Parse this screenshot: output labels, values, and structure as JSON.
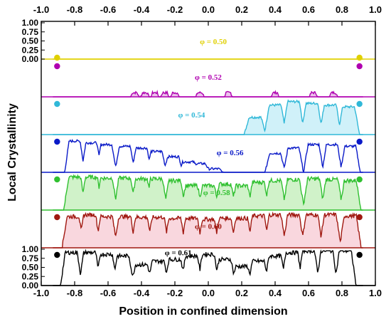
{
  "chart_data": {
    "type": "line",
    "xlabel": "Position in confined dimension",
    "ylabel": "Local Crystallinity",
    "xlim": [
      -1.0,
      1.0
    ],
    "ylim": [
      0.0,
      1.0
    ],
    "x_ticks": [
      "-1.0",
      "-0.8",
      "-0.6",
      "-0.4",
      "-0.2",
      "0.0",
      "0.2",
      "0.4",
      "0.6",
      "0.8",
      "1.0"
    ],
    "top_x_ticks": [
      "-1.0",
      "-0.8",
      "-0.6",
      "-0.4",
      "-0.2",
      "0.0",
      "0.2",
      "0.4",
      "0.6",
      "0.8",
      "1.0"
    ],
    "y_ticks_top": [
      "1.00",
      "0.75",
      "0.50",
      "0.25",
      "0.00"
    ],
    "y_ticks_bottom": [
      "1.00",
      "0.75",
      "0.50",
      "0.25",
      "0.00"
    ],
    "panels": [
      {
        "label": "φ = 0.50",
        "color": "#e0d000",
        "fill": null,
        "kind": "flat",
        "peaks": [],
        "width": 0.05
      },
      {
        "label": "φ = 0.52",
        "color": "#b000b0",
        "fill": "#e8b8e8",
        "kind": "small",
        "peaks": [
          -0.44,
          -0.38,
          -0.32,
          -0.26,
          -0.2,
          -0.05,
          0.12,
          0.4,
          0.63,
          0.75
        ],
        "width": 0.025
      },
      {
        "label": "φ = 0.54",
        "color": "#30b8d8",
        "fill": "#c8eef8",
        "kind": "partial",
        "peaks": [
          0.28,
          0.4,
          0.51,
          0.62,
          0.73,
          0.84
        ],
        "heights": [
          0.5,
          0.85,
          0.95,
          0.9,
          0.85,
          0.8
        ],
        "width": 0.065
      },
      {
        "label": "φ = 0.56",
        "color": "#0a1ac8",
        "fill": null,
        "kind": "partial",
        "peaks": [
          -0.8,
          -0.7,
          -0.61,
          -0.5,
          -0.4,
          -0.31,
          -0.21,
          -0.12,
          -0.05,
          0.03,
          0.4,
          0.51,
          0.63,
          0.74,
          0.85
        ],
        "heights": [
          0.9,
          0.85,
          0.8,
          0.75,
          0.7,
          0.6,
          0.45,
          0.3,
          0.25,
          0.1,
          0.55,
          0.7,
          0.8,
          0.8,
          0.75
        ],
        "width": 0.06
      },
      {
        "label": "φ = 0.58",
        "color": "#30c030",
        "fill": "#c8f0c0",
        "kind": "full",
        "peaks": [
          -0.8,
          -0.7,
          -0.61,
          -0.5,
          -0.4,
          -0.31,
          -0.2,
          -0.1,
          0.0,
          0.1,
          0.2,
          0.3,
          0.4,
          0.51,
          0.63,
          0.74,
          0.85
        ],
        "heights": [
          0.95,
          0.95,
          0.92,
          0.92,
          0.9,
          0.9,
          0.85,
          0.7,
          0.7,
          0.75,
          0.7,
          0.8,
          0.85,
          0.88,
          0.9,
          0.88,
          0.85
        ],
        "width": 0.065
      },
      {
        "label": "φ = 0.60",
        "color": "#a01810",
        "fill": "#f8d0d8",
        "kind": "full",
        "peaks": [
          -0.81,
          -0.71,
          -0.61,
          -0.5,
          -0.4,
          -0.3,
          -0.2,
          -0.1,
          0.0,
          0.1,
          0.2,
          0.3,
          0.4,
          0.51,
          0.62,
          0.73,
          0.85
        ],
        "heights": [
          0.9,
          0.95,
          0.9,
          0.9,
          0.88,
          0.88,
          0.85,
          0.85,
          0.82,
          0.85,
          0.85,
          0.92,
          0.95,
          0.95,
          0.95,
          0.95,
          0.92
        ],
        "width": 0.065
      },
      {
        "label": "φ = 0.61",
        "color": "#000000",
        "fill": null,
        "kind": "full",
        "peaks": [
          -0.82,
          -0.71,
          -0.61,
          -0.51,
          -0.4,
          -0.3,
          -0.2,
          -0.1,
          0.0,
          0.1,
          0.2,
          0.3,
          0.4,
          0.5,
          0.6,
          0.71,
          0.82
        ],
        "heights": [
          0.95,
          0.95,
          0.9,
          0.85,
          0.6,
          0.7,
          0.75,
          0.85,
          0.9,
          0.75,
          0.55,
          0.7,
          0.85,
          0.95,
          1.0,
          1.0,
          1.0
        ],
        "width": 0.065
      }
    ],
    "grid": false
  }
}
